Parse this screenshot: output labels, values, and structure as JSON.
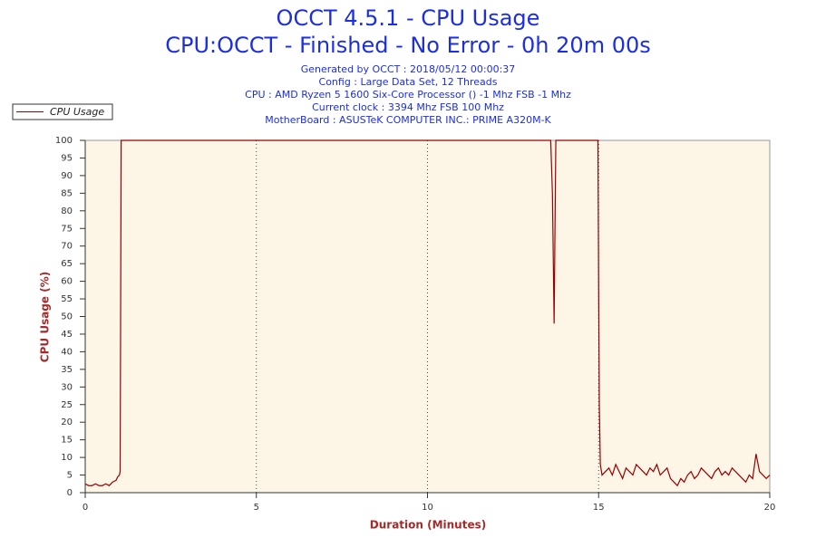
{
  "chart_data": {
    "type": "line",
    "title": "OCCT 4.5.1 - CPU Usage",
    "subtitle": "CPU:OCCT - Finished - No Error - 0h 20m 00s",
    "info": [
      "Generated by OCCT : 2018/05/12 00:00:37",
      "Config : Large Data Set, 12 Threads",
      "CPU : AMD Ryzen 5 1600 Six-Core Processor () -1 Mhz FSB -1 Mhz",
      "Current clock : 3394 Mhz FSB 100 Mhz",
      "MotherBoard : ASUSTeK COMPUTER INC.: PRIME A320M-K"
    ],
    "xlabel": "Duration (Minutes)",
    "ylabel": "CPU Usage (%)",
    "xlim": [
      0,
      20
    ],
    "xticks": [
      0,
      5,
      10,
      15,
      20
    ],
    "ylim": [
      0,
      100
    ],
    "yticks": [
      0,
      5,
      10,
      15,
      20,
      25,
      30,
      35,
      40,
      45,
      50,
      55,
      60,
      65,
      70,
      75,
      80,
      85,
      90,
      95,
      100
    ],
    "grid": true,
    "legend": "upper left",
    "x": [
      0,
      0.1,
      0.2,
      0.3,
      0.4,
      0.5,
      0.6,
      0.7,
      0.8,
      0.9,
      0.95,
      1.0,
      1.02,
      1.05,
      13.6,
      13.65,
      13.7,
      13.72,
      13.75,
      14.98,
      15.0,
      15.02,
      15.05,
      15.1,
      15.2,
      15.3,
      15.4,
      15.5,
      15.6,
      15.7,
      15.8,
      15.9,
      16.0,
      16.1,
      16.2,
      16.3,
      16.4,
      16.5,
      16.6,
      16.7,
      16.8,
      16.9,
      17.0,
      17.1,
      17.2,
      17.3,
      17.4,
      17.5,
      17.6,
      17.7,
      17.8,
      17.9,
      18.0,
      18.1,
      18.2,
      18.3,
      18.4,
      18.5,
      18.6,
      18.7,
      18.8,
      18.9,
      19.0,
      19.1,
      19.2,
      19.3,
      19.4,
      19.5,
      19.6,
      19.7,
      19.8,
      19.9,
      20.0
    ],
    "series": [
      {
        "name": "CPU Usage",
        "color": "#990000",
        "values": [
          2.5,
          2,
          2,
          2.5,
          2,
          2,
          2.5,
          2,
          3,
          3.5,
          4.5,
          5,
          6,
          100,
          100,
          85,
          48,
          70,
          100,
          100,
          60,
          25,
          8,
          5,
          6,
          7,
          5,
          8,
          6,
          4,
          7,
          6,
          5,
          8,
          7,
          6,
          5,
          7,
          6,
          8,
          5,
          6,
          7,
          4,
          3,
          2,
          4,
          3,
          5,
          6,
          4,
          5,
          7,
          6,
          5,
          4,
          6,
          7,
          5,
          6,
          5,
          7,
          6,
          5,
          4,
          3,
          5,
          4,
          11,
          6,
          5,
          4,
          5
        ]
      }
    ]
  }
}
